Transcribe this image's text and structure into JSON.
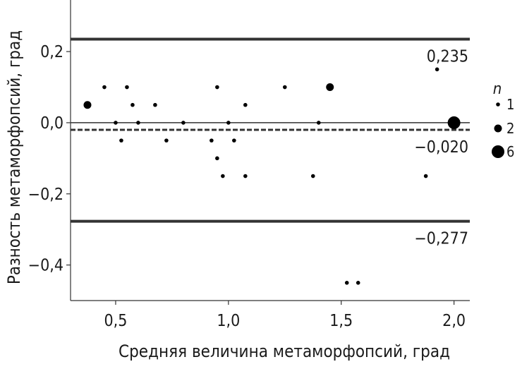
{
  "chart_data": {
    "type": "scatter",
    "xlabel": "Средняя величина метаморфопсий, град",
    "ylabel": "Разность метаморфопсий, град",
    "xlim": [
      0.3,
      2.07
    ],
    "ylim": [
      -0.5,
      0.345
    ],
    "x_ticks": [
      {
        "value": 0.5,
        "label": "0,5"
      },
      {
        "value": 1.0,
        "label": "1,0"
      },
      {
        "value": 1.5,
        "label": "1,5"
      },
      {
        "value": 2.0,
        "label": "2,0"
      }
    ],
    "y_ticks": [
      {
        "value": 0.2,
        "label": "0,2"
      },
      {
        "value": 0.0,
        "label": "0,0"
      },
      {
        "value": -0.2,
        "label": "−0,2"
      },
      {
        "value": -0.4,
        "label": "−0,4"
      }
    ],
    "reference_lines": [
      {
        "value": 0.235,
        "label": "0,235",
        "style": "solid-thick"
      },
      {
        "value": 0.0,
        "label": "",
        "style": "solid-thin"
      },
      {
        "value": -0.02,
        "label": "−0,020",
        "style": "dashed"
      },
      {
        "value": -0.277,
        "label": "−0,277",
        "style": "solid-thick"
      }
    ],
    "points": [
      {
        "x": 0.375,
        "y": 0.05,
        "n": 2
      },
      {
        "x": 0.45,
        "y": 0.1,
        "n": 1
      },
      {
        "x": 0.5,
        "y": 0.0,
        "n": 1
      },
      {
        "x": 0.525,
        "y": -0.05,
        "n": 1
      },
      {
        "x": 0.55,
        "y": 0.1,
        "n": 1
      },
      {
        "x": 0.575,
        "y": 0.05,
        "n": 1
      },
      {
        "x": 0.6,
        "y": 0.0,
        "n": 1
      },
      {
        "x": 0.675,
        "y": 0.05,
        "n": 1
      },
      {
        "x": 0.725,
        "y": -0.05,
        "n": 1
      },
      {
        "x": 0.8,
        "y": 0.0,
        "n": 1
      },
      {
        "x": 0.925,
        "y": -0.05,
        "n": 1
      },
      {
        "x": 0.95,
        "y": 0.1,
        "n": 1
      },
      {
        "x": 0.95,
        "y": -0.1,
        "n": 1
      },
      {
        "x": 0.975,
        "y": -0.15,
        "n": 1
      },
      {
        "x": 1.0,
        "y": 0.0,
        "n": 1
      },
      {
        "x": 1.025,
        "y": -0.05,
        "n": 1
      },
      {
        "x": 1.075,
        "y": 0.05,
        "n": 1
      },
      {
        "x": 1.075,
        "y": -0.15,
        "n": 1
      },
      {
        "x": 1.25,
        "y": 0.1,
        "n": 1
      },
      {
        "x": 1.375,
        "y": -0.15,
        "n": 1
      },
      {
        "x": 1.4,
        "y": 0.0,
        "n": 1
      },
      {
        "x": 1.45,
        "y": 0.1,
        "n": 2
      },
      {
        "x": 1.525,
        "y": -0.45,
        "n": 1
      },
      {
        "x": 1.575,
        "y": -0.45,
        "n": 1
      },
      {
        "x": 1.875,
        "y": -0.15,
        "n": 1
      },
      {
        "x": 1.925,
        "y": 0.15,
        "n": 1
      },
      {
        "x": 2.0,
        "y": 0.0,
        "n": 6
      }
    ],
    "legend": {
      "title": "n",
      "position": "right",
      "items": [
        {
          "n": 1,
          "label": "1"
        },
        {
          "n": 2,
          "label": "2"
        },
        {
          "n": 6,
          "label": "6"
        }
      ]
    },
    "grid": false
  }
}
